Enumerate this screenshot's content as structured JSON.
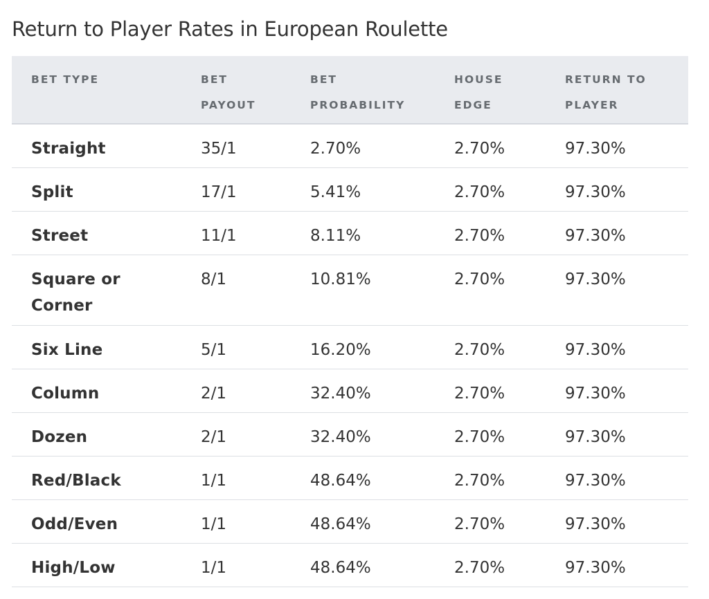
{
  "table": {
    "title": "Return to Player Rates in European Roulette",
    "headers": {
      "bet_type": "BET TYPE",
      "bet_payout": [
        "BET",
        "PAYOUT"
      ],
      "bet_probability": [
        "BET",
        "PROBABILITY"
      ],
      "house_edge": [
        "HOUSE",
        "EDGE"
      ],
      "return_to_player": [
        "RETURN TO",
        "PLAYER"
      ]
    },
    "rows": [
      {
        "bet_type": "Straight",
        "payout": "35/1",
        "probability": "2.70%",
        "house_edge": "2.70%",
        "rtp": "97.30%"
      },
      {
        "bet_type": "Split",
        "payout": "17/1",
        "probability": "5.41%",
        "house_edge": "2.70%",
        "rtp": "97.30%"
      },
      {
        "bet_type": "Street",
        "payout": "11/1",
        "probability": "8.11%",
        "house_edge": "2.70%",
        "rtp": "97.30%"
      },
      {
        "bet_type": [
          "Square or",
          "Corner"
        ],
        "payout": "8/1",
        "probability": "10.81%",
        "house_edge": "2.70%",
        "rtp": "97.30%"
      },
      {
        "bet_type": "Six Line",
        "payout": "5/1",
        "probability": "16.20%",
        "house_edge": "2.70%",
        "rtp": "97.30%"
      },
      {
        "bet_type": "Column",
        "payout": "2/1",
        "probability": "32.40%",
        "house_edge": "2.70%",
        "rtp": "97.30%"
      },
      {
        "bet_type": "Dozen",
        "payout": "2/1",
        "probability": "32.40%",
        "house_edge": "2.70%",
        "rtp": "97.30%"
      },
      {
        "bet_type": "Red/Black",
        "payout": "1/1",
        "probability": "48.64%",
        "house_edge": "2.70%",
        "rtp": "97.30%"
      },
      {
        "bet_type": "Odd/Even",
        "payout": "1/1",
        "probability": "48.64%",
        "house_edge": "2.70%",
        "rtp": "97.30%"
      },
      {
        "bet_type": "High/Low",
        "payout": "1/1",
        "probability": "48.64%",
        "house_edge": "2.70%",
        "rtp": "97.30%"
      }
    ]
  }
}
